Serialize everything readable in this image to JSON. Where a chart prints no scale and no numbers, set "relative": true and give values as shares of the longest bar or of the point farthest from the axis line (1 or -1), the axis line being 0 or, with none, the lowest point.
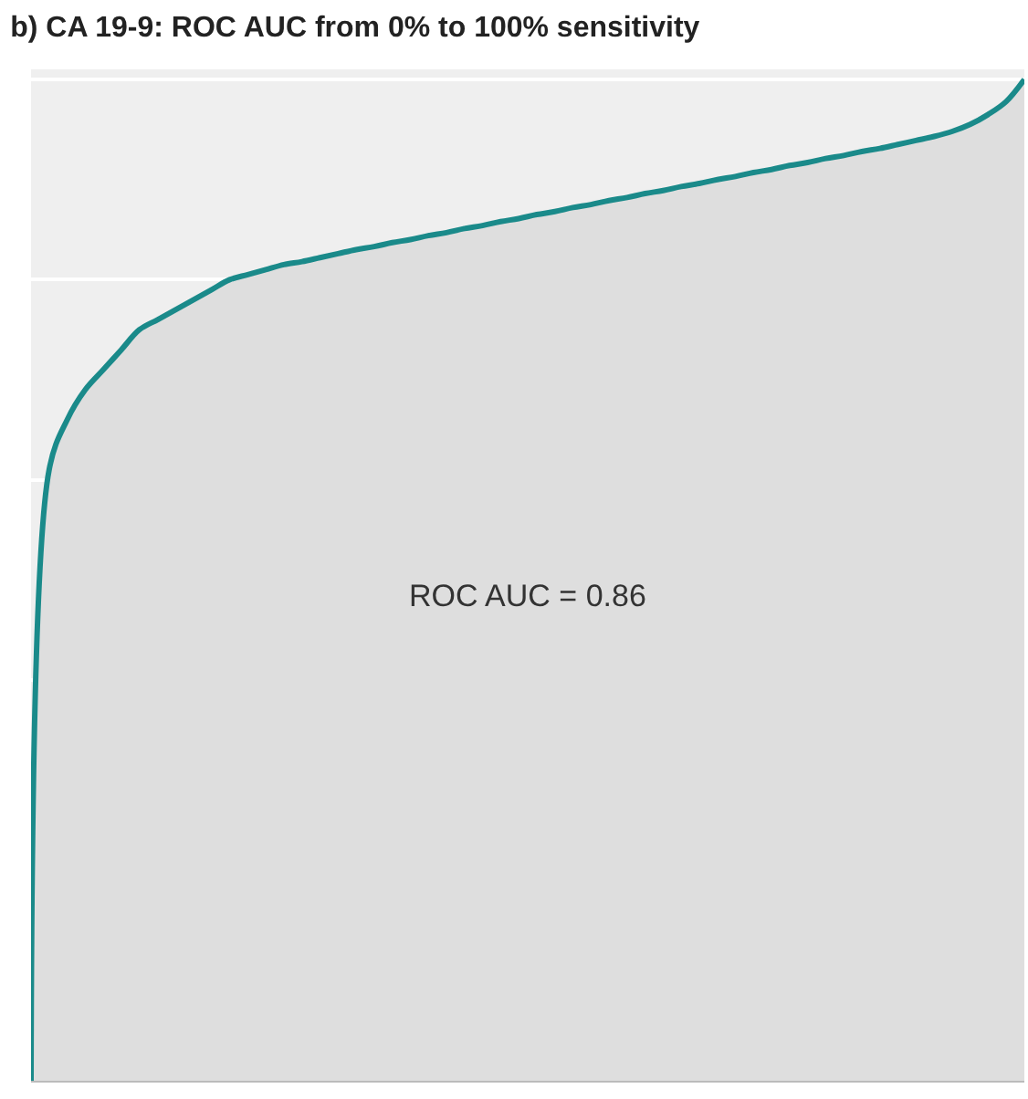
{
  "chart_data": {
    "type": "area",
    "title": "b) CA 19-9: ROC AUC from 0% to 100% sensitivity",
    "relative": true,
    "grid": "y",
    "legend": false,
    "marker": "none",
    "line_style": "solid",
    "categories": [
      null,
      null,
      null,
      null,
      null,
      null,
      null,
      null,
      null,
      null,
      null,
      null,
      null,
      null,
      null,
      null,
      null,
      null,
      null,
      null,
      null,
      null,
      null,
      null,
      null,
      null,
      null,
      null,
      null,
      null,
      null,
      null,
      null,
      null,
      null,
      null,
      null,
      null,
      null,
      null,
      null,
      null,
      null,
      null,
      null,
      null,
      null,
      null,
      null,
      null,
      null,
      null,
      null,
      null,
      null,
      null
    ],
    "series": [
      {
        "color": "#1a8a8a",
        "values": [
          0,
          0.61,
          0.66,
          0.69,
          0.71,
          0.73,
          0.75,
          0.76,
          0.77,
          0.78,
          0.79,
          0.8,
          0.805,
          0.81,
          0.815,
          0.818,
          0.822,
          0.826,
          0.83,
          0.833,
          0.837,
          0.84,
          0.844,
          0.847,
          0.851,
          0.854,
          0.858,
          0.861,
          0.865,
          0.868,
          0.872,
          0.875,
          0.879,
          0.882,
          0.886,
          0.889,
          0.893,
          0.896,
          0.9,
          0.903,
          0.907,
          0.91,
          0.914,
          0.917,
          0.921,
          0.924,
          0.928,
          0.931,
          0.935,
          0.939,
          0.943,
          0.948,
          0.955,
          0.965,
          0.978,
          1
        ]
      }
    ],
    "annotations": [
      "ROC AUC = 0.86"
    ]
  }
}
